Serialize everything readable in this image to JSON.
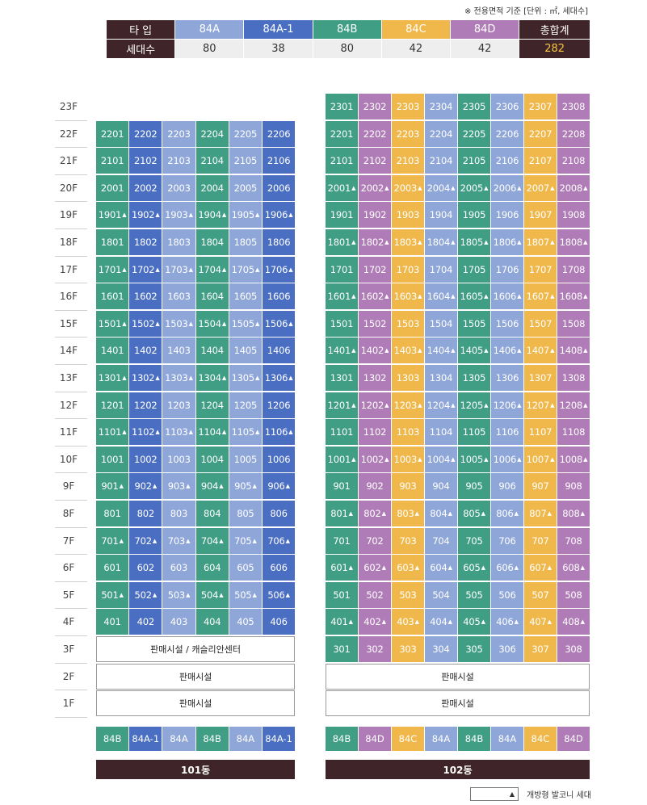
{
  "note": "※ 전용면적 기준 [단위 : ㎡, 세대수]",
  "summary": {
    "header_label": "타  입",
    "count_label": "세대수",
    "types": [
      {
        "name": "84A",
        "count": "80",
        "color": "#8fa6d9"
      },
      {
        "name": "84A-1",
        "count": "38",
        "color": "#4a6ec2"
      },
      {
        "name": "84B",
        "count": "80",
        "color": "#3f9e83"
      },
      {
        "name": "84C",
        "count": "42",
        "color": "#f0b84a"
      },
      {
        "name": "84D",
        "count": "42",
        "color": "#b07cb7"
      }
    ],
    "total_label": "총합계",
    "total_count": "282"
  },
  "colors": {
    "84A": "#8fa6d9",
    "84A-1": "#4a6ec2",
    "84B": "#3f9e83",
    "84C": "#f0b84a",
    "84D": "#b07cb7",
    "dark": "#3f2529"
  },
  "floors": [
    "23F",
    "22F",
    "21F",
    "20F",
    "19F",
    "18F",
    "17F",
    "16F",
    "15F",
    "14F",
    "13F",
    "12F",
    "11F",
    "10F",
    "9F",
    "8F",
    "7F",
    "6F",
    "5F",
    "4F",
    "3F",
    "2F",
    "1F"
  ],
  "building101": {
    "name": "101동",
    "top_floor": 22,
    "lowest_res_floor": 4,
    "columns": [
      "84B",
      "84A-1",
      "84A",
      "84B",
      "84A",
      "84A-1"
    ],
    "balcony_floors": [
      19,
      17,
      15,
      13,
      11,
      9,
      7,
      5
    ],
    "facility_3f": "판매시설 / 캐슬리안센터",
    "facility_2f": "판매시설",
    "facility_1f": "판매시설"
  },
  "building102": {
    "name": "102동",
    "top_floor": 23,
    "lowest_res_floor": 3,
    "columns": [
      "84B",
      "84D",
      "84C",
      "84A",
      "84B",
      "84A",
      "84C",
      "84D"
    ],
    "balcony_floors": [
      20,
      18,
      16,
      14,
      12,
      10,
      8,
      6,
      4
    ],
    "facility_2f": "판매시설",
    "facility_1f": "판매시설"
  },
  "legend": {
    "symbol": "▲",
    "text": "개방형 발코니 세대"
  }
}
